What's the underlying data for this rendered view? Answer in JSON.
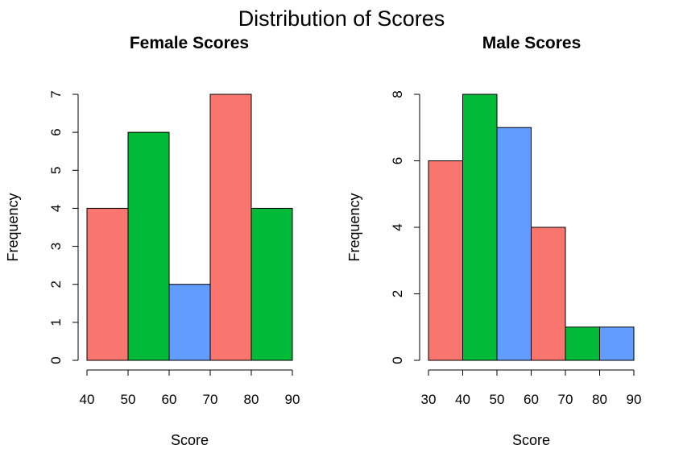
{
  "super_title": "Distribution of Scores",
  "colors": [
    "#F8766D",
    "#00BA38",
    "#619CFF"
  ],
  "chart_data": [
    {
      "type": "bar",
      "title": "Female Scores",
      "xlabel": "Score",
      "ylabel": "Frequency",
      "bins": [
        [
          40,
          50
        ],
        [
          50,
          60
        ],
        [
          60,
          70
        ],
        [
          70,
          80
        ],
        [
          80,
          90
        ]
      ],
      "values": [
        4,
        6,
        2,
        7,
        4
      ],
      "xticks": [
        40,
        50,
        60,
        70,
        80,
        90
      ],
      "yticks": [
        0,
        1,
        2,
        3,
        4,
        5,
        6,
        7
      ],
      "xlim": [
        40,
        90
      ],
      "ylim": [
        0,
        7
      ],
      "grid": false
    },
    {
      "type": "bar",
      "title": "Male Scores",
      "xlabel": "Score",
      "ylabel": "Frequency",
      "bins": [
        [
          30,
          40
        ],
        [
          40,
          50
        ],
        [
          50,
          60
        ],
        [
          60,
          70
        ],
        [
          70,
          80
        ],
        [
          80,
          90
        ]
      ],
      "values": [
        6,
        8,
        7,
        4,
        1,
        1
      ],
      "xticks": [
        30,
        40,
        50,
        60,
        70,
        80,
        90
      ],
      "yticks": [
        0,
        2,
        4,
        6,
        8
      ],
      "xlim": [
        30,
        90
      ],
      "ylim": [
        0,
        8
      ],
      "grid": false
    }
  ]
}
